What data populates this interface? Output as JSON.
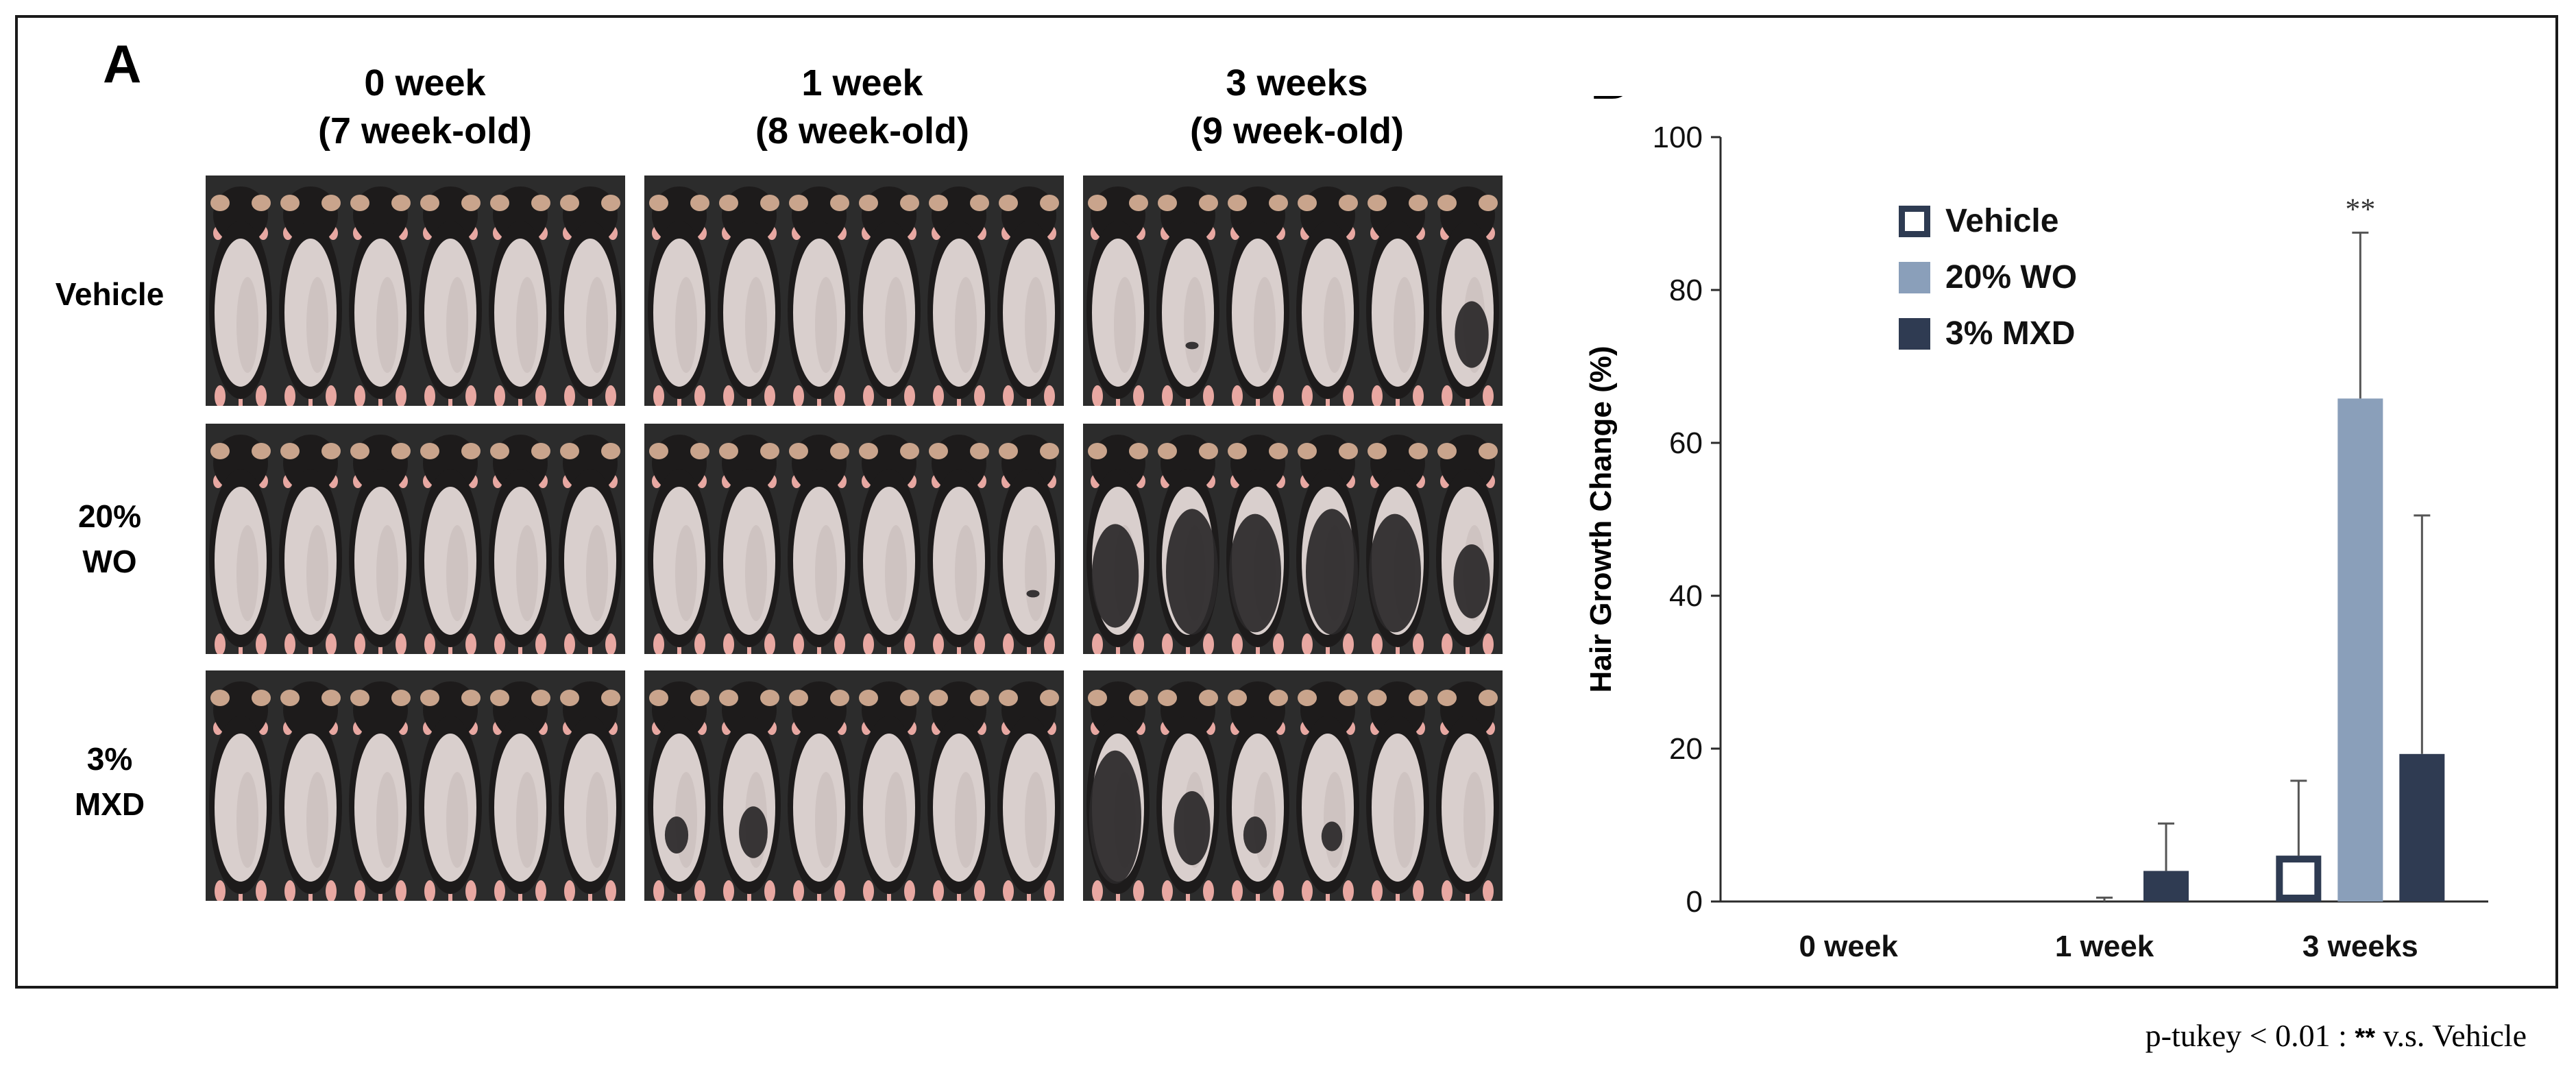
{
  "panel_a": {
    "letter": "A",
    "columns": [
      {
        "line1": "0 week",
        "line2": "(7 week-old)"
      },
      {
        "line1": "1 week",
        "line2": "(8 week-old)"
      },
      {
        "line1": "3 weeks",
        "line2": "(9 week-old)"
      }
    ],
    "rows": [
      {
        "line1": "Vehicle",
        "line2": ""
      },
      {
        "line1": "20%",
        "line2": "WO"
      },
      {
        "line1": "3%",
        "line2": "MXD"
      }
    ],
    "hair_coverage": [
      [
        [
          0,
          0,
          0,
          0,
          0,
          0
        ],
        [
          0,
          0,
          0,
          0,
          0,
          0
        ],
        [
          0,
          0.05,
          0,
          0,
          0,
          0.45
        ]
      ],
      [
        [
          0,
          0,
          0,
          0,
          0,
          0
        ],
        [
          0,
          0,
          0,
          0,
          0,
          0.05
        ],
        [
          0.7,
          0.85,
          0.8,
          0.85,
          0.8,
          0.5
        ]
      ],
      [
        [
          0,
          0,
          0,
          0,
          0,
          0
        ],
        [
          0.25,
          0.35,
          0,
          0,
          0,
          0
        ],
        [
          0.9,
          0.5,
          0.25,
          0.2,
          0,
          0
        ]
      ]
    ],
    "colors": {
      "backdrop": "#2c2c2c",
      "fur": "#1d1b1b",
      "skin": "#d9cfcd",
      "skin_shade": "#c4b8b6",
      "hair": "#2a2829",
      "ear": "#c9a48c",
      "paw": "#e8a8a2"
    }
  },
  "chart_data": {
    "type": "bar",
    "panel_letter": "B",
    "categories": [
      "0 week",
      "1 week",
      "3 weeks"
    ],
    "series": [
      {
        "name": "Vehicle",
        "values": [
          0,
          0,
          6
        ],
        "errors": [
          0,
          0,
          9.8
        ],
        "fill": "#ffffff",
        "stroke": "#2e3b52"
      },
      {
        "name": "20% WO",
        "values": [
          0,
          0,
          65.8
        ],
        "errors": [
          0,
          0.5,
          21.7
        ],
        "fill": "#8a9fba",
        "stroke": "#8a9fba"
      },
      {
        "name": "3% MXD",
        "values": [
          0,
          4,
          19.3
        ],
        "errors": [
          0,
          6.2,
          31.2
        ],
        "fill": "#2f3b52",
        "stroke": "#2f3b52"
      }
    ],
    "ylabel": "Hair Growth Change (%)",
    "xlabel": "",
    "ylim": [
      0,
      100
    ],
    "yticks": [
      "0",
      "20",
      "40",
      "60",
      "80",
      "100"
    ],
    "annotation": {
      "text": "**",
      "category_index": 2,
      "series_index": 1
    },
    "legend_position": "upper-left inside"
  },
  "footnote": {
    "prefix": "p-tukey < 0.01 : ",
    "stars": "**",
    "suffix": " v.s. Vehicle"
  }
}
